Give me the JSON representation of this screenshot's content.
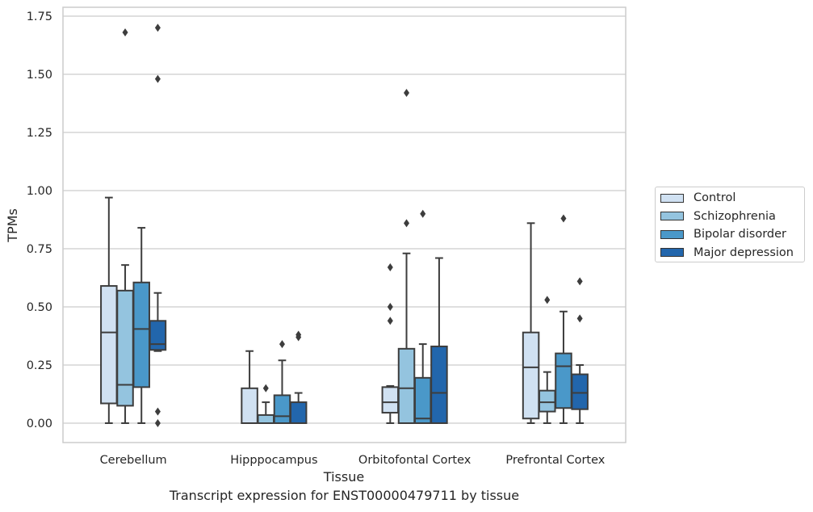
{
  "chart_data": {
    "type": "box",
    "title": "Transcript expression for ENST00000479711 by tissue",
    "xlabel": "Tissue",
    "ylabel": "TPMs",
    "ylim": [
      -0.08,
      1.8
    ],
    "yticks": [
      "0.00",
      "0.25",
      "0.50",
      "0.75",
      "1.00",
      "1.25",
      "1.50",
      "1.75"
    ],
    "categories": [
      "Cerebellum",
      "Hipppocampus",
      "Orbitofontal Cortex",
      "Prefrontal Cortex"
    ],
    "grid": "horizontal",
    "legend_position": "right",
    "series": [
      {
        "name": "Control",
        "color": "#d0e1f2",
        "boxes": [
          {
            "whislo": 0.0,
            "q1": 0.085,
            "med": 0.39,
            "q3": 0.59,
            "whishi": 0.97,
            "fliers": []
          },
          {
            "whislo": 0.0,
            "q1": 0.0,
            "med": 0.0,
            "q3": 0.15,
            "whishi": 0.31,
            "fliers": []
          },
          {
            "whislo": 0.0,
            "q1": 0.045,
            "med": 0.09,
            "q3": 0.155,
            "whishi": 0.16,
            "fliers": [
              0.44,
              0.5,
              0.67
            ]
          },
          {
            "whislo": 0.0,
            "q1": 0.02,
            "med": 0.24,
            "q3": 0.39,
            "whishi": 0.86,
            "fliers": []
          }
        ]
      },
      {
        "name": "Schizophrenia",
        "color": "#94c4df",
        "boxes": [
          {
            "whislo": 0.0,
            "q1": 0.075,
            "med": 0.165,
            "q3": 0.57,
            "whishi": 0.68,
            "fliers": [
              1.68
            ]
          },
          {
            "whislo": 0.0,
            "q1": 0.0,
            "med": 0.0,
            "q3": 0.035,
            "whishi": 0.09,
            "fliers": [
              0.15
            ]
          },
          {
            "whislo": 0.0,
            "q1": 0.0,
            "med": 0.15,
            "q3": 0.32,
            "whishi": 0.73,
            "fliers": [
              0.86,
              1.42
            ]
          },
          {
            "whislo": 0.0,
            "q1": 0.05,
            "med": 0.09,
            "q3": 0.14,
            "whishi": 0.22,
            "fliers": [
              0.53
            ]
          }
        ]
      },
      {
        "name": "Bipolar disorder",
        "color": "#4a98c9",
        "boxes": [
          {
            "whislo": 0.0,
            "q1": 0.155,
            "med": 0.405,
            "q3": 0.605,
            "whishi": 0.84,
            "fliers": []
          },
          {
            "whislo": 0.0,
            "q1": 0.0,
            "med": 0.03,
            "q3": 0.12,
            "whishi": 0.27,
            "fliers": [
              0.34
            ]
          },
          {
            "whislo": 0.0,
            "q1": 0.0,
            "med": 0.02,
            "q3": 0.195,
            "whishi": 0.34,
            "fliers": [
              0.9
            ]
          },
          {
            "whislo": 0.0,
            "q1": 0.065,
            "med": 0.245,
            "q3": 0.3,
            "whishi": 0.48,
            "fliers": [
              0.88
            ]
          }
        ]
      },
      {
        "name": "Major depression",
        "color": "#2266ac",
        "boxes": [
          {
            "whislo": 0.31,
            "q1": 0.315,
            "med": 0.34,
            "q3": 0.44,
            "whishi": 0.56,
            "fliers": [
              0.0,
              0.05,
              1.48,
              1.7
            ]
          },
          {
            "whislo": 0.0,
            "q1": 0.0,
            "med": 0.0,
            "q3": 0.09,
            "whishi": 0.13,
            "fliers": [
              0.37,
              0.38
            ]
          },
          {
            "whislo": 0.0,
            "q1": 0.0,
            "med": 0.13,
            "q3": 0.33,
            "whishi": 0.71,
            "fliers": []
          },
          {
            "whislo": 0.0,
            "q1": 0.06,
            "med": 0.13,
            "q3": 0.21,
            "whishi": 0.25,
            "fliers": [
              0.45,
              0.61
            ]
          }
        ]
      }
    ]
  }
}
